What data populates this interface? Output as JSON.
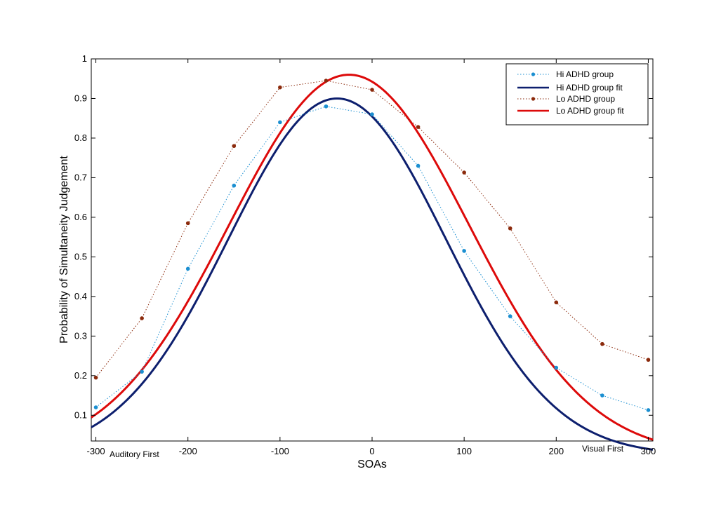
{
  "chart_data": {
    "type": "line",
    "xlabel": "SOAs",
    "ylabel": "Probability of Simultaneity Judgement",
    "xlim": [
      -305,
      305
    ],
    "ylim": [
      0.035,
      1.0
    ],
    "xticks": [
      -300,
      -200,
      -100,
      0,
      100,
      200,
      300
    ],
    "yticks": [
      0.1,
      0.2,
      0.3,
      0.4,
      0.5,
      0.6,
      0.7,
      0.8,
      0.9,
      1
    ],
    "grid": false,
    "legend_position": "top-right",
    "annotations": {
      "left": "Auditory First",
      "right": "Visual First"
    },
    "x": [
      -300,
      -250,
      -200,
      -150,
      -100,
      -50,
      0,
      50,
      100,
      150,
      200,
      250,
      300
    ],
    "series": [
      {
        "name": "Hi ADHD group",
        "style": "dotted-markers",
        "color": "#1b8fd1",
        "values": [
          0.12,
          0.21,
          0.47,
          0.68,
          0.84,
          0.88,
          0.86,
          0.73,
          0.515,
          0.35,
          0.22,
          0.15,
          0.113
        ]
      },
      {
        "name": "Hi ADHD group fit",
        "style": "solid",
        "color": "#0d1f6e",
        "fit": {
          "amplitude": 0.9,
          "mean": -38,
          "sd": 118
        }
      },
      {
        "name": "Lo ADHD group",
        "style": "dotted-markers",
        "color": "#8b2a0c",
        "values": [
          0.195,
          0.345,
          0.585,
          0.78,
          0.928,
          0.945,
          0.922,
          0.828,
          0.713,
          0.572,
          0.385,
          0.28,
          0.24
        ]
      },
      {
        "name": "Lo ADHD group fit",
        "style": "solid",
        "color": "#dd0a0a",
        "fit": {
          "amplitude": 0.96,
          "mean": -25,
          "sd": 130
        }
      }
    ]
  }
}
